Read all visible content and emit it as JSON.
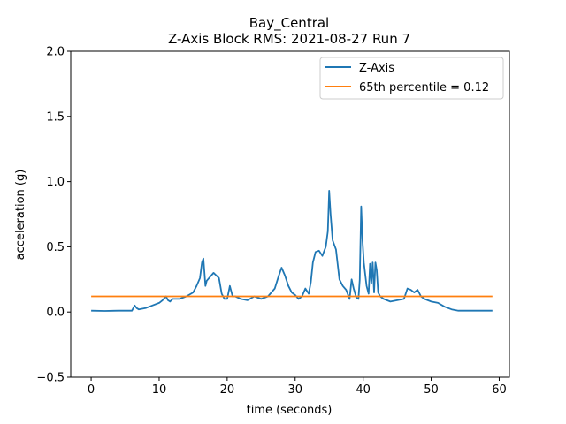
{
  "chart_data": {
    "type": "line",
    "title_line1": "Bay_Central",
    "title_line2": "Z-Axis Block RMS: 2021-08-27 Run 7",
    "xlabel": "time (seconds)",
    "ylabel": "acceleration (g)",
    "xlim": [
      -3,
      61.5
    ],
    "ylim": [
      -0.5,
      2.0
    ],
    "xticks": [
      0,
      10,
      20,
      30,
      40,
      50,
      60
    ],
    "xtick_labels": [
      "0",
      "10",
      "20",
      "30",
      "40",
      "50",
      "60"
    ],
    "yticks": [
      -0.5,
      0.0,
      0.5,
      1.0,
      1.5,
      2.0
    ],
    "ytick_labels": [
      "−0.5",
      "0.0",
      "0.5",
      "1.0",
      "1.5",
      "2.0"
    ],
    "grid": false,
    "legend_position": "upper right",
    "series": [
      {
        "name": "Z-Axis",
        "color": "#1f77b4",
        "x": [
          0,
          2,
          4,
          6,
          6.4,
          6.7,
          7,
          8,
          9,
          10,
          10.5,
          11,
          11.3,
          11.6,
          12,
          13,
          14,
          15,
          15.5,
          16,
          16.3,
          16.5,
          16.8,
          17,
          18,
          18.8,
          19.2,
          19.6,
          20,
          20.4,
          20.8,
          21.2,
          22,
          23,
          24,
          25,
          26,
          27,
          27.6,
          28,
          28.5,
          29,
          29.5,
          30,
          30.5,
          31,
          31.5,
          32,
          32.3,
          32.6,
          33,
          33.5,
          34,
          34.5,
          34.8,
          35,
          35.2,
          35.5,
          36,
          36.5,
          37,
          37.5,
          38,
          38.3,
          38.6,
          39,
          39.3,
          39.5,
          39.7,
          39.9,
          40.1,
          40.5,
          40.8,
          41,
          41.2,
          41.4,
          41.6,
          41.8,
          42,
          42.2,
          42.5,
          43,
          44,
          45,
          46,
          46.5,
          47,
          47.5,
          48,
          48.5,
          49,
          50,
          51,
          52,
          53,
          54,
          55,
          57,
          59
        ],
        "y": [
          0.01,
          0.008,
          0.01,
          0.01,
          0.05,
          0.03,
          0.02,
          0.03,
          0.05,
          0.07,
          0.09,
          0.12,
          0.09,
          0.08,
          0.1,
          0.1,
          0.12,
          0.15,
          0.2,
          0.26,
          0.38,
          0.41,
          0.2,
          0.24,
          0.3,
          0.26,
          0.14,
          0.1,
          0.1,
          0.2,
          0.12,
          0.12,
          0.1,
          0.09,
          0.12,
          0.1,
          0.12,
          0.18,
          0.28,
          0.34,
          0.28,
          0.2,
          0.15,
          0.13,
          0.1,
          0.12,
          0.18,
          0.14,
          0.23,
          0.38,
          0.46,
          0.47,
          0.43,
          0.5,
          0.62,
          0.93,
          0.75,
          0.55,
          0.48,
          0.25,
          0.2,
          0.17,
          0.1,
          0.25,
          0.18,
          0.11,
          0.1,
          0.25,
          0.81,
          0.55,
          0.38,
          0.2,
          0.14,
          0.37,
          0.22,
          0.38,
          0.15,
          0.38,
          0.32,
          0.15,
          0.12,
          0.1,
          0.08,
          0.09,
          0.1,
          0.18,
          0.17,
          0.15,
          0.17,
          0.12,
          0.1,
          0.08,
          0.07,
          0.04,
          0.02,
          0.01,
          0.01,
          0.01,
          0.01
        ]
      },
      {
        "name": "65th percentile = 0.12",
        "color": "#ff7f0e",
        "x": [
          0,
          59
        ],
        "y": [
          0.12,
          0.12
        ]
      }
    ]
  }
}
